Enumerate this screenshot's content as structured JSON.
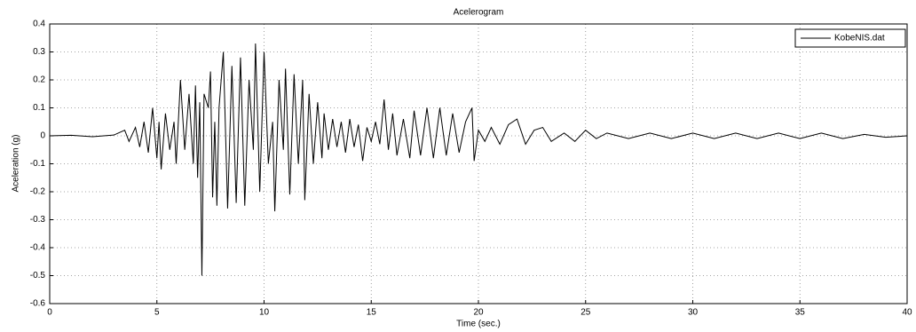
{
  "chart_data": {
    "type": "line",
    "title": "Acelerogram",
    "x_label": "Time (sec.)",
    "y_label": "Aceleration (g)",
    "x": [
      0,
      1,
      2,
      3,
      3.5,
      3.7,
      4.0,
      4.2,
      4.4,
      4.6,
      4.8,
      5.0,
      5.1,
      5.2,
      5.4,
      5.6,
      5.8,
      5.9,
      6.1,
      6.3,
      6.5,
      6.7,
      6.8,
      6.9,
      7.0,
      7.1,
      7.2,
      7.4,
      7.5,
      7.6,
      7.7,
      7.8,
      7.9,
      8.1,
      8.3,
      8.5,
      8.7,
      8.9,
      9.1,
      9.3,
      9.5,
      9.6,
      9.8,
      10.0,
      10.2,
      10.4,
      10.5,
      10.7,
      10.9,
      11.0,
      11.2,
      11.4,
      11.6,
      11.8,
      11.9,
      12.1,
      12.3,
      12.5,
      12.7,
      12.8,
      13.0,
      13.2,
      13.4,
      13.6,
      13.8,
      14.0,
      14.2,
      14.4,
      14.6,
      14.8,
      15.0,
      15.2,
      15.4,
      15.6,
      15.8,
      16.0,
      16.2,
      16.5,
      16.8,
      17.0,
      17.3,
      17.6,
      17.9,
      18.2,
      18.5,
      18.8,
      19.1,
      19.4,
      19.7,
      19.8,
      20.0,
      20.3,
      20.6,
      21.0,
      21.4,
      21.8,
      22.2,
      22.6,
      23.0,
      23.4,
      24,
      24.5,
      25,
      25.5,
      26,
      27,
      28,
      29,
      30,
      31,
      32,
      33,
      34,
      35,
      36,
      37,
      38,
      39,
      40
    ],
    "series": [
      {
        "name": "KobeNIS.dat",
        "color": "#000000",
        "values": [
          0,
          0.002,
          -0.003,
          0.003,
          0.02,
          -0.02,
          0.03,
          -0.04,
          0.05,
          -0.06,
          0.1,
          -0.08,
          0.05,
          -0.12,
          0.08,
          -0.05,
          0.05,
          -0.1,
          0.2,
          -0.05,
          0.15,
          -0.1,
          0.18,
          -0.15,
          0.12,
          -0.5,
          0.15,
          0.1,
          0.23,
          -0.22,
          0.05,
          -0.25,
          0.1,
          0.3,
          -0.26,
          0.25,
          -0.24,
          0.28,
          -0.25,
          0.2,
          -0.05,
          0.33,
          -0.2,
          0.3,
          -0.1,
          0.05,
          -0.27,
          0.2,
          -0.05,
          0.24,
          -0.21,
          0.22,
          -0.1,
          0.2,
          -0.23,
          0.15,
          -0.1,
          0.12,
          -0.08,
          0.08,
          -0.05,
          0.06,
          -0.04,
          0.05,
          -0.06,
          0.06,
          -0.04,
          0.04,
          -0.09,
          0.03,
          -0.02,
          0.05,
          -0.03,
          0.13,
          -0.05,
          0.08,
          -0.07,
          0.06,
          -0.08,
          0.09,
          -0.07,
          0.1,
          -0.08,
          0.1,
          -0.07,
          0.08,
          -0.06,
          0.05,
          0.1,
          -0.09,
          0.02,
          -0.02,
          0.03,
          -0.03,
          0.04,
          0.06,
          -0.03,
          0.02,
          0.03,
          -0.02,
          0.01,
          -0.02,
          0.02,
          -0.01,
          0.01,
          -0.01,
          0.01,
          -0.01,
          0.01,
          -0.01,
          0.01,
          -0.01,
          0.01,
          -0.01,
          0.01,
          -0.01,
          0.005,
          -0.005,
          0
        ]
      }
    ],
    "xlim": [
      0,
      40
    ],
    "xticks": [
      0,
      5,
      10,
      15,
      20,
      25,
      30,
      35,
      40
    ],
    "ylim": [
      -0.6,
      0.4
    ],
    "yticks": [
      -0.6,
      -0.5,
      -0.4,
      -0.3,
      -0.2,
      -0.1,
      0,
      0.1,
      0.2,
      0.3,
      0.4
    ],
    "grid": true,
    "legend": "top-right"
  }
}
